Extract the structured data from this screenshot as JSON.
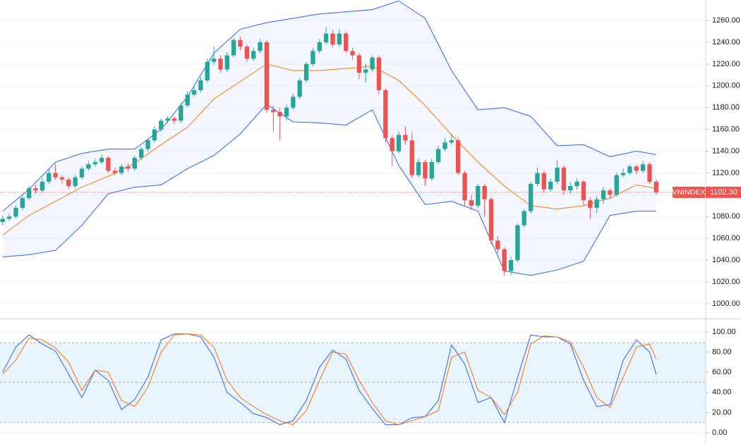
{
  "chart_data": [
    {
      "type": "candlestick",
      "symbol": "VNINDEX",
      "last_label": "1102.30",
      "up_color": "#26a69a",
      "down_color": "#ef5350",
      "band_color": "#2962ff",
      "middle_color": "#f57c00",
      "open": [
        1075,
        1078,
        1080,
        1088,
        1097,
        1106,
        1104,
        1112,
        1120,
        1116,
        1114,
        1108,
        1116,
        1124,
        1128,
        1130,
        1134,
        1122,
        1120,
        1126,
        1124,
        1134,
        1142,
        1150,
        1160,
        1168,
        1170,
        1168,
        1182,
        1192,
        1196,
        1205,
        1222,
        1225,
        1215,
        1228,
        1242,
        1236,
        1225,
        1232,
        1240,
        1178,
        1176,
        1172,
        1180,
        1190,
        1205,
        1220,
        1232,
        1240,
        1248,
        1238,
        1248,
        1232,
        1228,
        1212,
        1215,
        1226,
        1196,
        1152,
        1140,
        1155,
        1150,
        1118,
        1130,
        1115,
        1130,
        1142,
        1148,
        1150,
        1120,
        1095,
        1090,
        1108,
        1096,
        1058,
        1050,
        1030,
        1040,
        1072,
        1085,
        1110,
        1120,
        1105,
        1112,
        1125,
        1104,
        1108,
        1112,
        1095,
        1088,
        1096,
        1104,
        1100,
        1118,
        1120,
        1126,
        1122,
        1128,
        1112
      ],
      "high": [
        1081,
        1083,
        1090,
        1099,
        1108,
        1109,
        1115,
        1124,
        1128,
        1118,
        1116,
        1118,
        1126,
        1131,
        1133,
        1137,
        1136,
        1125,
        1128,
        1129,
        1136,
        1144,
        1152,
        1163,
        1170,
        1172,
        1172,
        1184,
        1195,
        1199,
        1208,
        1225,
        1236,
        1228,
        1231,
        1244,
        1245,
        1238,
        1235,
        1243,
        1242,
        1182,
        1180,
        1183,
        1193,
        1207,
        1222,
        1235,
        1243,
        1254,
        1251,
        1252,
        1250,
        1235,
        1230,
        1220,
        1228,
        1228,
        1198,
        1155,
        1158,
        1163,
        1158,
        1133,
        1132,
        1133,
        1145,
        1152,
        1156,
        1152,
        1122,
        1100,
        1110,
        1110,
        1098,
        1062,
        1052,
        1043,
        1074,
        1087,
        1112,
        1125,
        1122,
        1115,
        1132,
        1127,
        1112,
        1115,
        1114,
        1098,
        1099,
        1107,
        1106,
        1120,
        1124,
        1128,
        1128,
        1131,
        1130,
        1114
      ],
      "low": [
        1072,
        1076,
        1078,
        1086,
        1095,
        1101,
        1102,
        1110,
        1114,
        1110,
        1105,
        1106,
        1114,
        1122,
        1126,
        1128,
        1120,
        1118,
        1118,
        1121,
        1122,
        1132,
        1140,
        1148,
        1158,
        1166,
        1165,
        1166,
        1180,
        1190,
        1194,
        1203,
        1219,
        1212,
        1213,
        1226,
        1233,
        1222,
        1223,
        1230,
        1175,
        1158,
        1150,
        1168,
        1178,
        1188,
        1203,
        1218,
        1230,
        1238,
        1235,
        1236,
        1230,
        1224,
        1206,
        1203,
        1213,
        1192,
        1148,
        1126,
        1138,
        1146,
        1115,
        1116,
        1108,
        1113,
        1128,
        1140,
        1146,
        1118,
        1090,
        1086,
        1088,
        1080,
        1054,
        1046,
        1026,
        1026,
        1038,
        1070,
        1083,
        1108,
        1102,
        1103,
        1110,
        1100,
        1101,
        1105,
        1090,
        1078,
        1083,
        1092,
        1096,
        1098,
        1116,
        1118,
        1119,
        1120,
        1110,
        1100
      ],
      "close": [
        1078,
        1080,
        1088,
        1097,
        1106,
        1104,
        1112,
        1120,
        1116,
        1114,
        1108,
        1116,
        1124,
        1128,
        1130,
        1134,
        1122,
        1120,
        1126,
        1124,
        1134,
        1142,
        1150,
        1160,
        1168,
        1170,
        1168,
        1182,
        1192,
        1196,
        1205,
        1222,
        1225,
        1215,
        1228,
        1242,
        1236,
        1225,
        1232,
        1240,
        1178,
        1176,
        1172,
        1180,
        1190,
        1205,
        1220,
        1232,
        1240,
        1248,
        1238,
        1248,
        1232,
        1228,
        1212,
        1215,
        1226,
        1196,
        1152,
        1140,
        1155,
        1150,
        1118,
        1130,
        1115,
        1130,
        1142,
        1148,
        1150,
        1120,
        1095,
        1090,
        1108,
        1096,
        1058,
        1050,
        1030,
        1040,
        1072,
        1085,
        1110,
        1120,
        1105,
        1112,
        1125,
        1104,
        1108,
        1112,
        1095,
        1088,
        1096,
        1104,
        1100,
        1118,
        1120,
        1126,
        1122,
        1128,
        1112,
        1102.3
      ],
      "bands": {
        "x": [
          0,
          4,
          8,
          12,
          16,
          20,
          24,
          28,
          32,
          36,
          40,
          44,
          48,
          52,
          56,
          60,
          64,
          68,
          72,
          76,
          80,
          84,
          88,
          92,
          96,
          99
        ],
        "upper": [
          1085,
          1105,
          1130,
          1138,
          1142,
          1142,
          1160,
          1190,
          1230,
          1252,
          1258,
          1262,
          1266,
          1268,
          1270,
          1278,
          1262,
          1214,
          1178,
          1180,
          1172,
          1145,
          1146,
          1135,
          1140,
          1137
        ],
        "middle": [
          1063,
          1081,
          1094,
          1107,
          1117,
          1129,
          1146,
          1162,
          1188,
          1204,
          1220,
          1214,
          1214,
          1216,
          1218,
          1205,
          1182,
          1155,
          1130,
          1108,
          1090,
          1087,
          1090,
          1097,
          1109,
          1106
        ],
        "lower": [
          1043,
          1045,
          1049,
          1072,
          1101,
          1107,
          1109,
          1124,
          1136,
          1156,
          1183,
          1167,
          1166,
          1164,
          1178,
          1127,
          1091,
          1094,
          1085,
          1030,
          1026,
          1031,
          1039,
          1081,
          1085,
          1085
        ]
      },
      "xlim": [
        -0.4,
        106.5
      ],
      "ylim": [
        986.4,
        1278.8
      ],
      "yticks": [
        {
          "value": 1000,
          "label": "1000.00"
        },
        {
          "value": 1020,
          "label": "1020.00"
        },
        {
          "value": 1040,
          "label": "1040.00"
        },
        {
          "value": 1060,
          "label": "1060.00"
        },
        {
          "value": 1080,
          "label": "1080.00"
        },
        {
          "value": 1100,
          "label": "1100.00"
        },
        {
          "value": 1120,
          "label": "1120.00"
        },
        {
          "value": 1140,
          "label": "1140.00"
        },
        {
          "value": 1160,
          "label": "1160.00"
        },
        {
          "value": 1180,
          "label": "1180.00"
        },
        {
          "value": 1200,
          "label": "1200.00"
        },
        {
          "value": 1220,
          "label": "1220.00"
        },
        {
          "value": 1240,
          "label": "1240.00"
        },
        {
          "value": 1260,
          "label": "1260.00"
        }
      ],
      "grid": true
    },
    {
      "type": "line",
      "x": [
        0,
        2,
        4,
        6,
        8,
        10,
        12,
        14,
        16,
        18,
        20,
        22,
        24,
        26,
        28,
        30,
        32,
        34,
        36,
        38,
        40,
        42,
        44,
        46,
        48,
        50,
        52,
        54,
        56,
        58,
        60,
        62,
        64,
        66,
        68,
        70,
        72,
        74,
        76,
        78,
        80,
        82,
        84,
        86,
        88,
        90,
        92,
        94,
        96,
        98,
        99
      ],
      "series": [
        {
          "color": "#2962ff",
          "values": [
            60,
            85,
            97,
            88,
            81,
            58,
            35,
            62,
            52,
            23,
            33,
            55,
            92,
            98,
            98,
            95,
            75,
            40,
            30,
            19,
            15,
            8,
            12,
            32,
            65,
            82,
            73,
            42,
            24,
            8,
            8,
            15,
            16,
            32,
            87,
            68,
            30,
            35,
            10,
            55,
            97,
            95,
            95,
            88,
            52,
            26,
            28,
            72,
            92,
            80,
            58
          ]
        },
        {
          "color": "#ff6d00",
          "values": [
            58,
            72,
            94,
            92,
            84,
            70,
            42,
            62,
            60,
            32,
            26,
            45,
            80,
            97,
            98,
            97,
            85,
            52,
            35,
            26,
            18,
            12,
            8,
            22,
            52,
            80,
            78,
            52,
            30,
            12,
            8,
            12,
            16,
            22,
            75,
            80,
            42,
            35,
            18,
            40,
            88,
            96,
            95,
            90,
            65,
            35,
            25,
            55,
            85,
            88,
            73
          ]
        }
      ],
      "bands": [
        89,
        50,
        10
      ],
      "xlim": [
        -0.4,
        106.5
      ],
      "ylim": [
        -11.1,
        112.5
      ],
      "yticks": [
        {
          "value": 0,
          "label": "0.00"
        },
        {
          "value": 20,
          "label": "20.00"
        },
        {
          "value": 40,
          "label": "40.00"
        },
        {
          "value": 60,
          "label": "60.00"
        },
        {
          "value": 80,
          "label": "80.00"
        },
        {
          "value": 100,
          "label": "100.00"
        }
      ],
      "grid": true
    }
  ]
}
